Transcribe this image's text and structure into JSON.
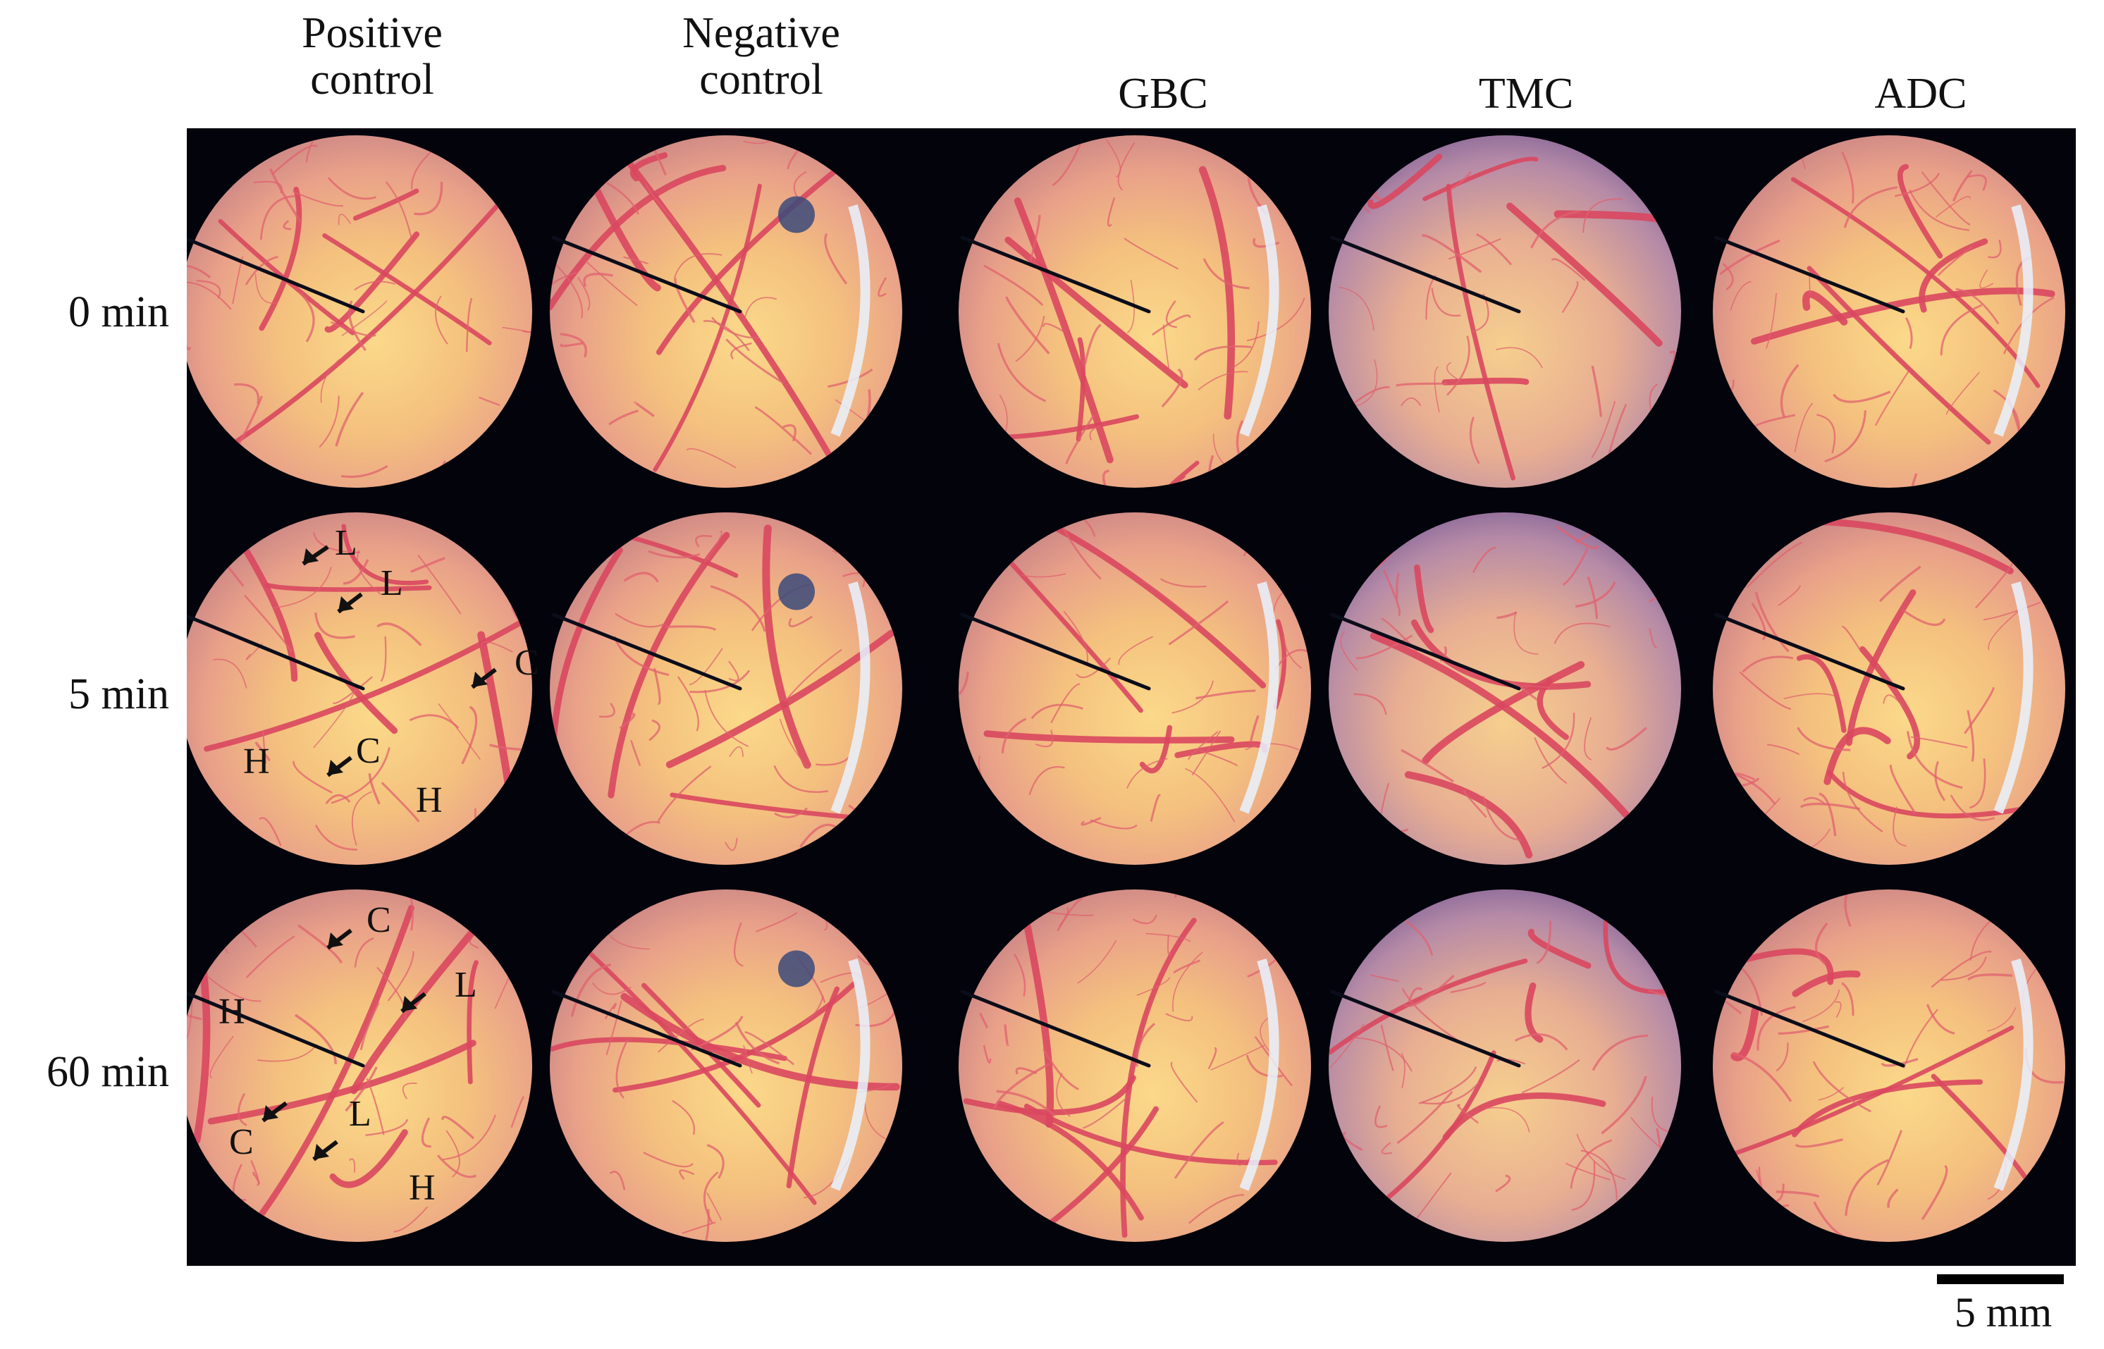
{
  "columns": [
    {
      "label_line1": "Positive",
      "label_line2": "control"
    },
    {
      "label_line1": "Negative",
      "label_line2": "control"
    },
    {
      "label_line1": "",
      "label_line2": "GBC"
    },
    {
      "label_line1": "",
      "label_line2": "TMC"
    },
    {
      "label_line1": "",
      "label_line2": "ADC"
    }
  ],
  "rows": [
    {
      "label": "0 min"
    },
    {
      "label": "5 min"
    },
    {
      "label": "60 min"
    }
  ],
  "annotations": {
    "r1": [
      "L",
      "L",
      "C",
      "H",
      "C",
      "H"
    ],
    "r2": [
      "C",
      "L",
      "H",
      "C",
      "L",
      "H"
    ]
  },
  "scale_bar": {
    "label": "5 mm"
  }
}
